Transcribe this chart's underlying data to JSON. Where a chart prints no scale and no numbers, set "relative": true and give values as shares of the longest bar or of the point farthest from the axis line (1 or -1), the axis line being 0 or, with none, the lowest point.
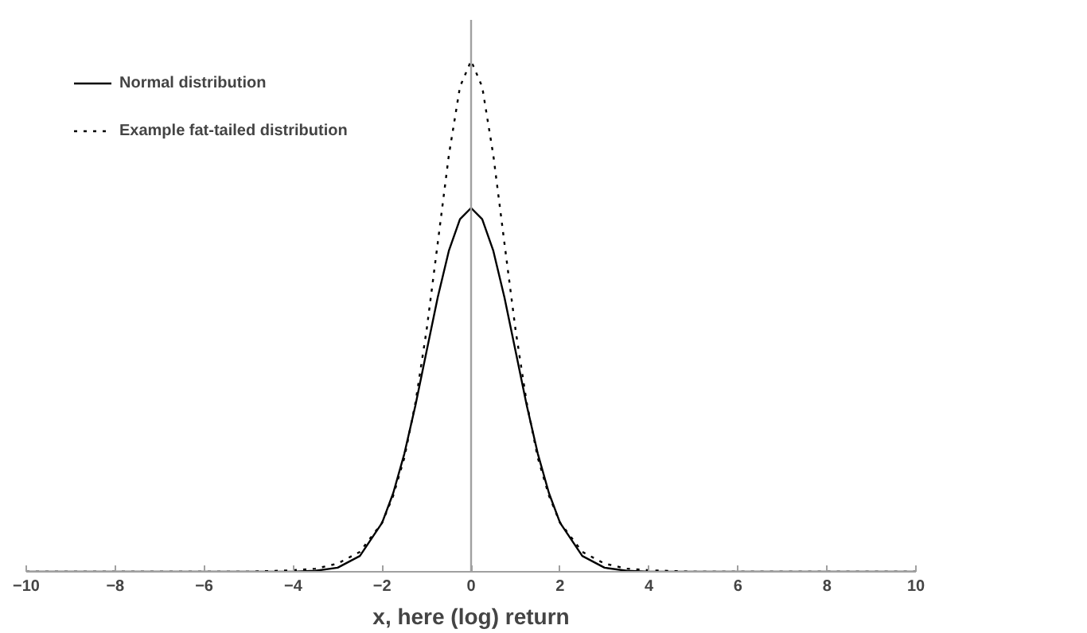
{
  "chart_data": {
    "type": "line",
    "relative": true,
    "xlabel": "x, here (log) return",
    "x": [
      -10,
      -8,
      -6,
      -5,
      -4,
      -3.5,
      -3,
      -2.5,
      -2,
      -1.75,
      -1.5,
      -1.25,
      -1,
      -0.75,
      -0.5,
      -0.25,
      0,
      0.25,
      0.5,
      0.75,
      1,
      1.25,
      1.5,
      1.75,
      2,
      2.5,
      3,
      3.5,
      4,
      5,
      6,
      8,
      10
    ],
    "xlim": [
      -10,
      10
    ],
    "xticks": [
      -10,
      -8,
      -6,
      -4,
      -2,
      0,
      2,
      4,
      6,
      8,
      10
    ],
    "series": [
      {
        "name": "Normal distribution",
        "color": "#000000",
        "line_style": "solid",
        "values": [
          0,
          0,
          0,
          0,
          0,
          0.002,
          0.008,
          0.031,
          0.096,
          0.154,
          0.231,
          0.326,
          0.432,
          0.537,
          0.628,
          0.69,
          0.712,
          0.69,
          0.628,
          0.537,
          0.432,
          0.326,
          0.231,
          0.154,
          0.096,
          0.031,
          0.008,
          0.002,
          0,
          0,
          0,
          0,
          0
        ]
      },
      {
        "name": "Example fat-tailed distribution",
        "color": "#000000",
        "line_style": "dotted",
        "values": [
          0,
          0,
          0,
          0,
          0.003,
          0.006,
          0.016,
          0.039,
          0.096,
          0.149,
          0.223,
          0.331,
          0.473,
          0.643,
          0.815,
          0.949,
          1,
          0.949,
          0.815,
          0.643,
          0.473,
          0.331,
          0.223,
          0.149,
          0.096,
          0.039,
          0.016,
          0.006,
          0.003,
          0,
          0,
          0,
          0
        ]
      }
    ],
    "ref_lines": [
      {
        "axis": "x",
        "value": 0,
        "color": "#a0a0a0"
      }
    ],
    "legend": "top left",
    "grid": false,
    "marker": "none"
  }
}
